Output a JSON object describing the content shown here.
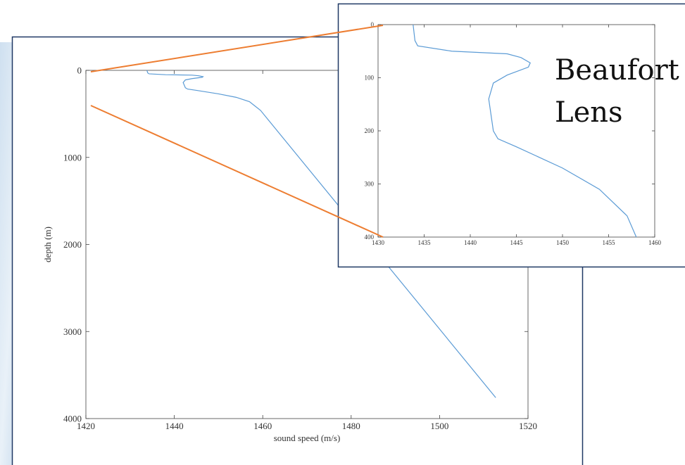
{
  "chart_data": [
    {
      "type": "line",
      "xlabel": "sound speed (m/s)",
      "ylabel": "depth (m)",
      "x": [
        1433.8,
        1434,
        1434.3,
        1438,
        1444,
        1445.5,
        1446.5,
        1446.3,
        1444,
        1442.5,
        1442,
        1442.5,
        1443,
        1445,
        1450,
        1454,
        1457,
        1458,
        1459.5,
        1512.7
      ],
      "y": [
        0,
        30,
        40,
        50,
        55,
        62,
        72,
        80,
        95,
        110,
        140,
        200,
        215,
        230,
        270,
        310,
        360,
        400,
        460,
        3760
      ],
      "color": "#5b9bd5",
      "xlim": [
        1420,
        1520
      ],
      "ylim": [
        0,
        4000
      ],
      "y_reversed": true,
      "xticks": [
        1420,
        1440,
        1460,
        1480,
        1500,
        1520
      ],
      "yticks": [
        0,
        1000,
        2000,
        3000,
        4000
      ]
    },
    {
      "type": "line",
      "annotation": "Beaufort Lens",
      "x": [
        1433.8,
        1434,
        1434.3,
        1438,
        1444,
        1445.5,
        1446.5,
        1446.3,
        1444,
        1442.5,
        1442,
        1442.5,
        1443,
        1445,
        1450,
        1454,
        1457,
        1458
      ],
      "y": [
        0,
        30,
        40,
        50,
        55,
        62,
        72,
        80,
        95,
        110,
        140,
        200,
        215,
        230,
        270,
        310,
        360,
        400
      ],
      "color": "#5b9bd5",
      "xlim": [
        1430,
        1460
      ],
      "ylim": [
        0,
        400
      ],
      "y_reversed": true,
      "xticks": [
        1430,
        1435,
        1440,
        1445,
        1450,
        1455,
        1460
      ],
      "yticks": [
        0,
        100,
        200,
        300,
        400
      ]
    }
  ]
}
